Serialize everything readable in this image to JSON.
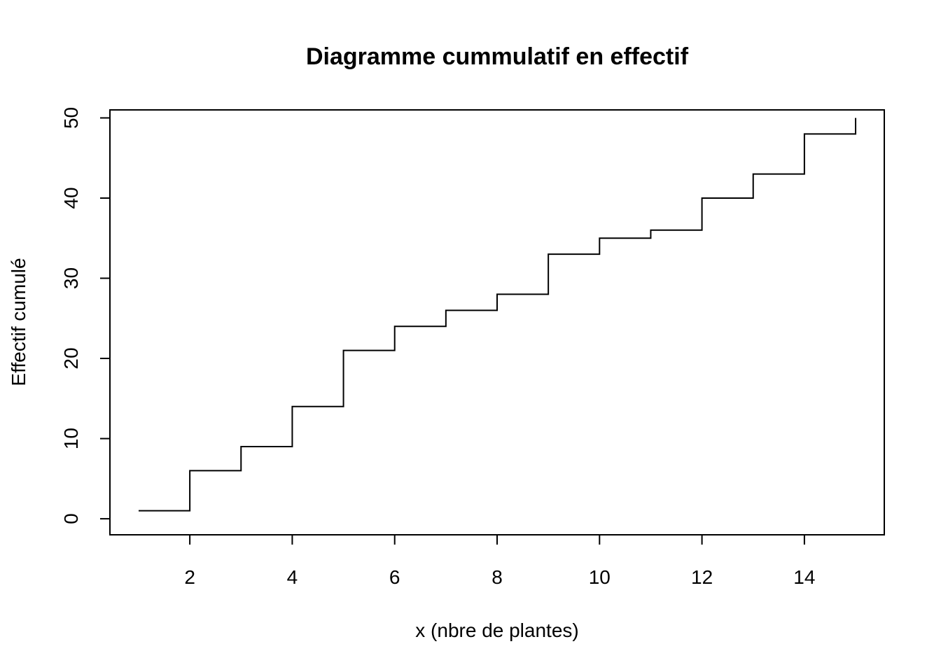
{
  "chart_data": {
    "type": "line",
    "style": "step",
    "title": "Diagramme cummulatif en effectif",
    "xlabel": "x (nbre de plantes)",
    "ylabel": "Effectif cumulé",
    "x": [
      1,
      2,
      3,
      4,
      5,
      6,
      7,
      8,
      9,
      10,
      11,
      12,
      13,
      14,
      15
    ],
    "y": [
      1,
      6,
      9,
      14,
      21,
      24,
      26,
      28,
      33,
      35,
      36,
      40,
      43,
      48,
      50
    ],
    "xlim": [
      0.44,
      15.56
    ],
    "ylim": [
      -2,
      51
    ],
    "x_ticks": [
      2,
      4,
      6,
      8,
      10,
      12,
      14
    ],
    "y_ticks": [
      0,
      10,
      20,
      30,
      40,
      50
    ],
    "grid": false,
    "legend": "none",
    "line_color": "#000000"
  }
}
